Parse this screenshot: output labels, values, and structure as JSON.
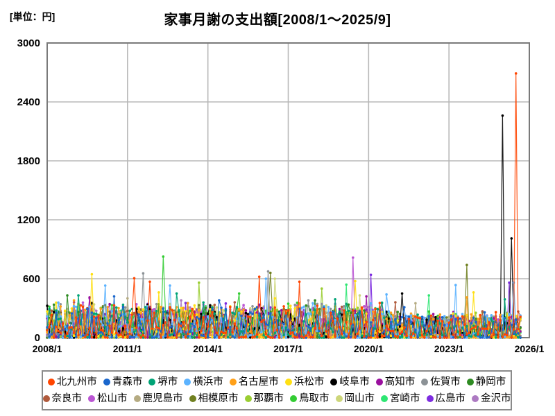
{
  "page": {
    "unit_label": "[単位：円]",
    "title": "家事月謝の支出額[2008/1～2025/9]"
  },
  "chart_data": {
    "type": "line",
    "title": "家事月謝の支出額[2008/1～2025/9]",
    "unit_label": "[単位：円]",
    "x_start": "2008/1",
    "x_end_data": "2025/9",
    "x_end_axis": "2026/1",
    "months_total": 213,
    "axis_span_months": 216,
    "ylim": [
      0,
      3000
    ],
    "yticks": [
      0,
      600,
      1200,
      1800,
      2400,
      3000
    ],
    "xticks": [
      "2008/1",
      "2011/1",
      "2014/1",
      "2017/1",
      "2020/1",
      "2023/1",
      "2026/1"
    ],
    "xtick_interval_months": 36,
    "grid": true,
    "legend_position": "bottom",
    "marker": "dot",
    "baseline_model": {
      "description": "dense monthly noise mostly 0-300 yen near the axis, estimated from pixels",
      "exponent": 2.2,
      "bump_chance": 0.06,
      "bump_min": 240,
      "bump_range": 120,
      "late_damp_start_index": 150,
      "late_damp_factor": 0.75
    },
    "series": [
      {
        "name": "北九州市",
        "color": "#ff4500",
        "seed": 11,
        "noise_max": 330,
        "spikes": [
          [
            39,
            605
          ],
          [
            46,
            570
          ],
          [
            95,
            620
          ],
          [
            113,
            570
          ],
          [
            210,
            2690
          ]
        ]
      },
      {
        "name": "青森市",
        "color": "#1a66cc",
        "seed": 22,
        "noise_max": 300,
        "spikes": [
          [
            30,
            420
          ],
          [
            77,
            380
          ],
          [
            160,
            310
          ]
        ]
      },
      {
        "name": "堺市",
        "color": "#00a376",
        "seed": 33,
        "noise_max": 300,
        "spikes": [
          [
            14,
            430
          ],
          [
            58,
            450
          ],
          [
            129,
            390
          ],
          [
            205,
            390
          ]
        ]
      },
      {
        "name": "横浜市",
        "color": "#5cb3ff",
        "seed": 44,
        "noise_max": 320,
        "spikes": [
          [
            26,
            530
          ],
          [
            55,
            530
          ],
          [
            98,
            600
          ],
          [
            152,
            440
          ],
          [
            183,
            535
          ],
          [
            209,
            560
          ]
        ]
      },
      {
        "name": "名古屋市",
        "color": "#ffa018",
        "seed": 55,
        "noise_max": 320,
        "spikes": [
          [
            12,
            380
          ],
          [
            63,
            350
          ],
          [
            188,
            410
          ]
        ]
      },
      {
        "name": "浜松市",
        "color": "#ffe014",
        "seed": 66,
        "noise_max": 330,
        "spikes": [
          [
            20,
            645
          ],
          [
            50,
            460
          ],
          [
            102,
            400
          ],
          [
            138,
            575
          ],
          [
            191,
            460
          ]
        ]
      },
      {
        "name": "岐阜市",
        "color": "#000000",
        "seed": 77,
        "noise_max": 280,
        "spikes": [
          [
            73,
            330
          ],
          [
            159,
            450
          ],
          [
            204,
            2260
          ],
          [
            208,
            1010
          ]
        ]
      },
      {
        "name": "高知市",
        "color": "#9a0f9e",
        "seed": 88,
        "noise_max": 290,
        "spikes": [
          [
            19,
            410
          ],
          [
            143,
            420
          ]
        ]
      },
      {
        "name": "佐賀市",
        "color": "#8c9296",
        "seed": 99,
        "noise_max": 300,
        "spikes": [
          [
            6,
            340
          ],
          [
            43,
            655
          ],
          [
            99,
            675
          ],
          [
            117,
            380
          ]
        ]
      },
      {
        "name": "静岡市",
        "color": "#2e8b22",
        "seed": 110,
        "noise_max": 300,
        "spikes": [
          [
            9,
            430
          ],
          [
            120,
            380
          ]
        ]
      },
      {
        "name": "奈良市",
        "color": "#b05a3c",
        "seed": 121,
        "noise_max": 300,
        "spikes": [
          [
            84,
            360
          ],
          [
            156,
            360
          ]
        ]
      },
      {
        "name": "松山市",
        "color": "#ba55d3",
        "seed": 132,
        "noise_max": 300,
        "spikes": [
          [
            19,
            400
          ],
          [
            137,
            815
          ]
        ]
      },
      {
        "name": "鹿児島市",
        "color": "#b5ab82",
        "seed": 143,
        "noise_max": 300,
        "spikes": [
          [
            36,
            400
          ],
          [
            165,
            350
          ]
        ]
      },
      {
        "name": "相模原市",
        "color": "#708020",
        "seed": 154,
        "noise_max": 300,
        "spikes": [
          [
            100,
            660
          ],
          [
            188,
            740
          ]
        ]
      },
      {
        "name": "那覇市",
        "color": "#9acd32",
        "seed": 165,
        "noise_max": 310,
        "spikes": [
          [
            68,
            560
          ],
          [
            123,
            500
          ]
        ]
      },
      {
        "name": "鳥取市",
        "color": "#33cc33",
        "seed": 176,
        "noise_max": 300,
        "spikes": [
          [
            52,
            825
          ],
          [
            86,
            450
          ]
        ]
      },
      {
        "name": "岡山市",
        "color": "#cdd67a",
        "seed": 187,
        "noise_max": 310,
        "spikes": [
          [
            102,
            600
          ],
          [
            140,
            430
          ]
        ]
      },
      {
        "name": "宮崎市",
        "color": "#2ee673",
        "seed": 198,
        "noise_max": 300,
        "spikes": [
          [
            134,
            540
          ],
          [
            171,
            430
          ]
        ]
      },
      {
        "name": "広島市",
        "color": "#7d2ce0",
        "seed": 209,
        "noise_max": 290,
        "spikes": [
          [
            145,
            640
          ],
          [
            207,
            560
          ]
        ]
      },
      {
        "name": "金沢市",
        "color": "#ad7ac2",
        "seed": 220,
        "noise_max": 290,
        "spikes": [
          [
            60,
            380
          ],
          [
            150,
            350
          ]
        ]
      }
    ]
  }
}
